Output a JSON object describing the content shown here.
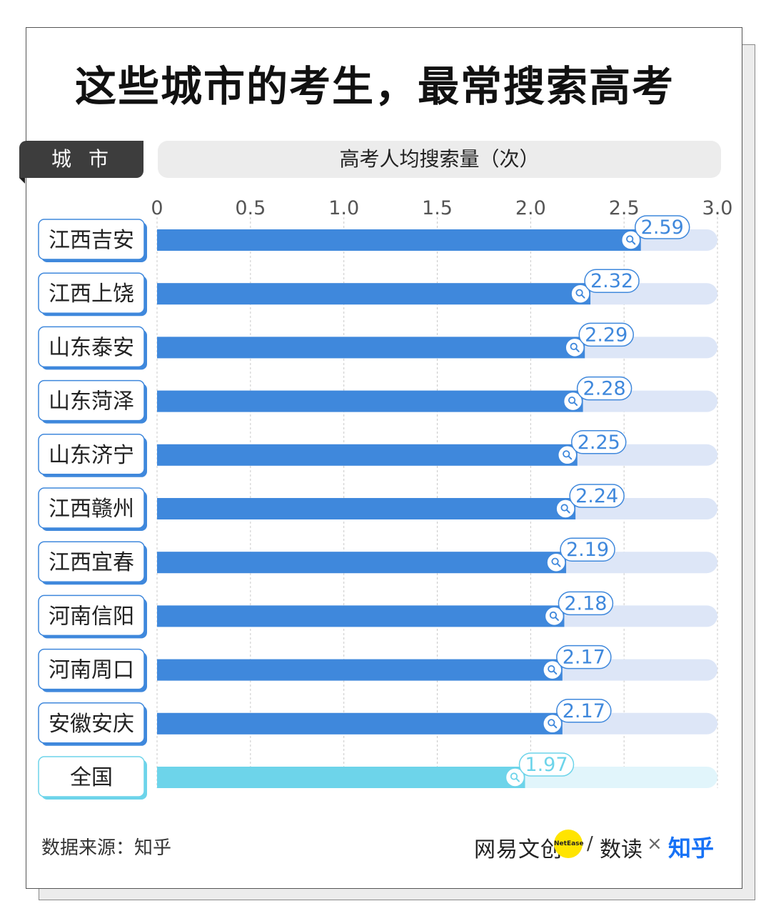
{
  "title": "这些城市的考生，最常搜索高考",
  "header": {
    "city_label": "城市",
    "value_label": "高考人均搜索量（次）"
  },
  "source": "数据来源：知乎",
  "brand": {
    "netease": "网易文创",
    "netease_badge": "NetEase",
    "slash": "/",
    "shudu": "数读",
    "times": "×",
    "zhihu": "知乎"
  },
  "colors": {
    "bar": "#3f88dc",
    "bar_track": "#dde6f7",
    "national_bar": "#6dd4ea",
    "national_track": "#e1f5fb",
    "label_border": "#3f88dc",
    "national_label_border": "#6dd4ea"
  },
  "chart_data": {
    "type": "bar",
    "orientation": "horizontal",
    "categories": [
      "江西吉安",
      "江西上饶",
      "山东泰安",
      "山东菏泽",
      "山东济宁",
      "江西赣州",
      "江西宜春",
      "河南信阳",
      "河南周口",
      "安徽安庆",
      "全国"
    ],
    "values": [
      2.59,
      2.32,
      2.29,
      2.28,
      2.25,
      2.24,
      2.19,
      2.18,
      2.17,
      2.17,
      1.97
    ],
    "value_labels": [
      "2.59",
      "2.32",
      "2.29",
      "2.28",
      "2.25",
      "2.24",
      "2.19",
      "2.18",
      "2.17",
      "2.17",
      "1.97"
    ],
    "highlight": "全国",
    "xlim": [
      0,
      3.0
    ],
    "x_ticks": [
      0,
      0.5,
      1.0,
      1.5,
      2.0,
      2.5,
      3.0
    ],
    "x_tick_labels": [
      "0",
      "0.5",
      "1.0",
      "1.5",
      "2.0",
      "2.5",
      "3.0"
    ],
    "grid": true,
    "xlabel": "高考人均搜索量（次）",
    "ylabel": "城市"
  }
}
